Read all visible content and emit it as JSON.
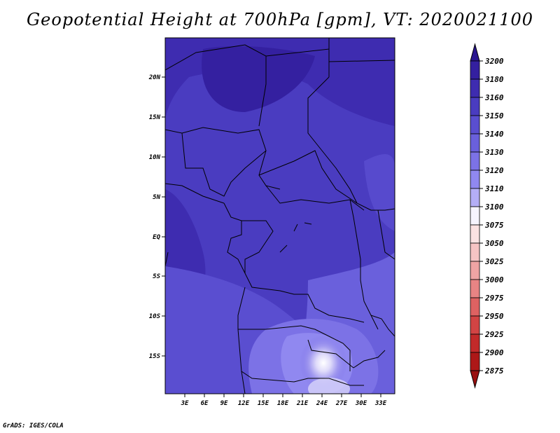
{
  "title": "Geopotential Height at 700hPa [gpm], VT: 2020021100",
  "credit": "GrADS: IGES/COLA",
  "map": {
    "lat_labels": [
      "20N",
      "15N",
      "10N",
      "5N",
      "EQ",
      "5S",
      "10S",
      "15S"
    ],
    "lon_labels": [
      "3E",
      "6E",
      "9E",
      "12E",
      "15E",
      "18E",
      "21E",
      "24E",
      "27E",
      "30E",
      "33E"
    ]
  },
  "legend": {
    "labels": [
      "3200",
      "3180",
      "3160",
      "3150",
      "3140",
      "3130",
      "3120",
      "3110",
      "3100",
      "3075",
      "3050",
      "3025",
      "3000",
      "2975",
      "2950",
      "2925",
      "2900",
      "2875"
    ],
    "colors": [
      "#2a1690",
      "#3420a0",
      "#3e2cb0",
      "#4a3cc0",
      "#5a4ed0",
      "#6a60dc",
      "#7c72e6",
      "#9088f0",
      "#b4aef6",
      "#f6f4fe",
      "#fbe2e2",
      "#f6c4c4",
      "#efa4a4",
      "#e88484",
      "#de6262",
      "#d24444",
      "#c22a2a",
      "#ad1818",
      "#9a1010"
    ]
  }
}
